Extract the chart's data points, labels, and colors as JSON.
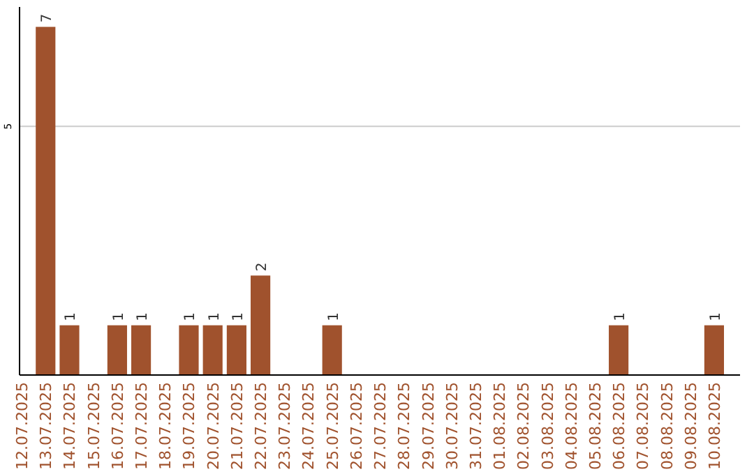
{
  "chart_data": {
    "type": "bar",
    "categories": [
      "12.07.2025",
      "13.07.2025",
      "14.07.2025",
      "15.07.2025",
      "16.07.2025",
      "17.07.2025",
      "18.07.2025",
      "19.07.2025",
      "20.07.2025",
      "21.07.2025",
      "22.07.2025",
      "23.07.2025",
      "24.07.2025",
      "25.07.2025",
      "26.07.2025",
      "27.07.2025",
      "28.07.2025",
      "29.07.2025",
      "30.07.2025",
      "31.07.2025",
      "01.08.2025",
      "02.08.2025",
      "03.08.2025",
      "04.08.2025",
      "05.08.2025",
      "06.08.2025",
      "07.08.2025",
      "08.08.2025",
      "09.08.2025",
      "10.08.2025"
    ],
    "values": [
      0,
      7,
      1,
      0,
      1,
      1,
      0,
      1,
      1,
      1,
      2,
      0,
      0,
      1,
      0,
      0,
      0,
      0,
      0,
      0,
      0,
      0,
      0,
      0,
      0,
      1,
      0,
      0,
      0,
      1
    ],
    "value_labels": [
      null,
      "7",
      "1",
      null,
      "1",
      "1",
      null,
      "1",
      "1",
      "1",
      "2",
      null,
      null,
      "1",
      null,
      null,
      null,
      null,
      null,
      null,
      null,
      null,
      null,
      null,
      null,
      "1",
      null,
      null,
      null,
      "1"
    ],
    "color": "#a0522d",
    "ylim": [
      0,
      7.4
    ],
    "yticks": [
      5
    ],
    "grid": "y"
  }
}
